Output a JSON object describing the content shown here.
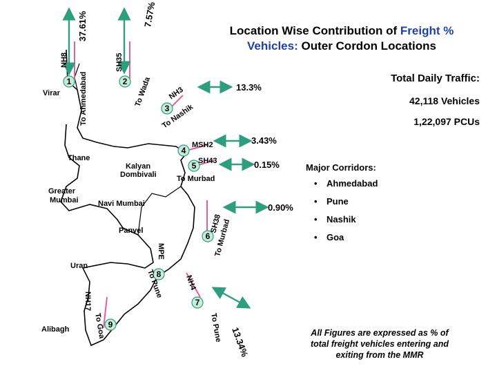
{
  "title": {
    "part1": "Location Wise Contribution of ",
    "part2": "Freight %",
    "part3": "Vehicles: ",
    "part4": "Outer Cordon Locations"
  },
  "traffic": {
    "heading": "Total Daily Traffic:",
    "vehicles": "42,118 Vehicles",
    "pcus": "1,22,097 PCUs"
  },
  "corridors": {
    "heading": "Major Corridors:",
    "items": [
      "Ahmedabad",
      "Pune",
      "Nashik",
      "Goa"
    ]
  },
  "note": {
    "line1": "All Figures are expressed as % of",
    "line2": "total freight vehicles entering and",
    "line3": "exiting from the MMR"
  },
  "places": {
    "virar": "Virar",
    "thane": "Thane",
    "kalyan": "Kalyan",
    "dombivali": "Dombivali",
    "greater": "Greater",
    "mumbai": "Mumbai",
    "navi_mumbai": "Navi Mumbai",
    "panvel": "Panvel",
    "uran": "Uran",
    "alibagh": "Alibagh"
  },
  "roads": {
    "nh8": "NH8",
    "to_ahmedabad": "To Ahmedabad",
    "sh35": "SH35",
    "to_wada": "To Wada",
    "nh3": "NH3",
    "to_nashik": "To Nashik",
    "msh2": "MSH2",
    "sh43": "SH43",
    "to_murbad_1": "To Murbad",
    "sh38": "SH38",
    "to_murbad_2": "To Murbad",
    "mpe": "MPE",
    "to_pune_1": "To Pune",
    "nh4": "NH4",
    "nh17": "NH17",
    "to_goa": "To Goa",
    "to_pune_2": "To Pune"
  },
  "percentages": {
    "p1": "37.61%",
    "p2": "7.57%",
    "p3": "13.3%",
    "p4": "3.43%",
    "p5": "0.15%",
    "p6": "0.90%",
    "p7": "13.34%"
  },
  "markers": [
    "1",
    "2",
    "3",
    "4",
    "5",
    "6",
    "7",
    "8",
    "9"
  ],
  "colors": {
    "arrow": "#2e9e7e",
    "marker_fill": "#c8ecd8",
    "title_accent": "#1f3fae"
  }
}
